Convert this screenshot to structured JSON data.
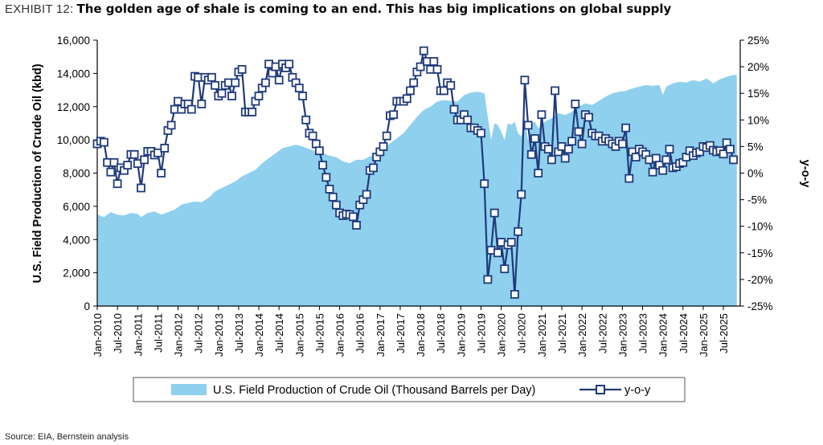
{
  "header": {
    "exhibit_label": "EXHIBIT 12:",
    "headline": "The golden age of shale is coming to an end. This has big implications on global supply"
  },
  "footer": {
    "source": "Source: EIA, Bernstein analysis"
  },
  "colors": {
    "area": "#8fd0ee",
    "line": "#1f3a7a",
    "marker_fill": "#ffffff"
  },
  "chart_data": {
    "type": "area+line",
    "ylabel_left": "U.S. Field Production of Crude Oil (kbd)",
    "ylabel_right": "y-o-y",
    "yticks_left": [
      "0",
      "2,000",
      "4,000",
      "6,000",
      "8,000",
      "10,000",
      "12,000",
      "14,000",
      "16,000"
    ],
    "yticks_right": [
      "-25%",
      "-20%",
      "-15%",
      "-10%",
      "-5%",
      "0%",
      "5%",
      "10%",
      "15%",
      "20%",
      "25%"
    ],
    "ylim_left": [
      0,
      16000
    ],
    "ylim_right": [
      -25,
      25
    ],
    "xlim_months": [
      0,
      191
    ],
    "xtick_labels": [
      "Jan-2010",
      "Jul-2010",
      "Jan-2011",
      "Jul-2011",
      "Jan-2012",
      "Jul-2012",
      "Jan-2013",
      "Jul-2013",
      "Jan-2014",
      "Jul-2014",
      "Jan-2015",
      "Jul-2015",
      "Jan-2016",
      "Jul-2016",
      "Jan-2017",
      "Jul-2017",
      "Jan-2018",
      "Jul-2018",
      "Jan-2019",
      "Jul-2019",
      "Jan-2020",
      "Jul-2020",
      "Jan-2021",
      "Jul-2021",
      "Jan-2022",
      "Jul-2022",
      "Jan-2023",
      "Jul-2023",
      "Jan-2024",
      "Jul-2024",
      "Jan-2025",
      "Jul-2025"
    ],
    "legend": {
      "position": "bottom",
      "area_label": "U.S. Field Production of Crude Oil (Thousand Barrels per Day)",
      "line_label": "y-o-y"
    },
    "series": [
      {
        "name": "U.S. Field Production of Crude Oil (Thousand Barrels per Day)",
        "kind": "area",
        "axis": "left",
        "points": [
          [
            0,
            5500
          ],
          [
            2,
            5350
          ],
          [
            4,
            5650
          ],
          [
            6,
            5500
          ],
          [
            8,
            5450
          ],
          [
            10,
            5600
          ],
          [
            12,
            5550
          ],
          [
            13,
            5350
          ],
          [
            15,
            5600
          ],
          [
            17,
            5700
          ],
          [
            19,
            5500
          ],
          [
            21,
            5650
          ],
          [
            23,
            5800
          ],
          [
            25,
            6100
          ],
          [
            27,
            6200
          ],
          [
            29,
            6300
          ],
          [
            31,
            6250
          ],
          [
            33,
            6500
          ],
          [
            35,
            6900
          ],
          [
            37,
            7100
          ],
          [
            39,
            7300
          ],
          [
            41,
            7500
          ],
          [
            43,
            7800
          ],
          [
            45,
            8000
          ],
          [
            47,
            8200
          ],
          [
            49,
            8600
          ],
          [
            51,
            8900
          ],
          [
            53,
            9200
          ],
          [
            55,
            9500
          ],
          [
            57,
            9600
          ],
          [
            59,
            9700
          ],
          [
            61,
            9600
          ],
          [
            63,
            9450
          ],
          [
            65,
            9300
          ],
          [
            67,
            9200
          ],
          [
            69,
            9050
          ],
          [
            71,
            8950
          ],
          [
            73,
            8700
          ],
          [
            75,
            8600
          ],
          [
            77,
            8800
          ],
          [
            79,
            8800
          ],
          [
            81,
            9000
          ],
          [
            83,
            9200
          ],
          [
            85,
            9400
          ],
          [
            87,
            9800
          ],
          [
            89,
            10100
          ],
          [
            91,
            10400
          ],
          [
            93,
            10900
          ],
          [
            95,
            11400
          ],
          [
            97,
            11800
          ],
          [
            99,
            12000
          ],
          [
            101,
            12300
          ],
          [
            103,
            12400
          ],
          [
            105,
            12350
          ],
          [
            107,
            12300
          ],
          [
            109,
            12700
          ],
          [
            111,
            12850
          ],
          [
            113,
            12900
          ],
          [
            115,
            12800
          ],
          [
            117,
            10000
          ],
          [
            118,
            11000
          ],
          [
            119,
            10900
          ],
          [
            120,
            10500
          ],
          [
            121,
            10000
          ],
          [
            122,
            11000
          ],
          [
            123,
            10900
          ],
          [
            124,
            11100
          ],
          [
            125,
            10400
          ],
          [
            126,
            10200
          ],
          [
            127,
            11200
          ],
          [
            128,
            9950
          ],
          [
            129,
            11000
          ],
          [
            130,
            11100
          ],
          [
            131,
            10700
          ],
          [
            133,
            11100
          ],
          [
            135,
            11300
          ],
          [
            137,
            11600
          ],
          [
            139,
            11500
          ],
          [
            141,
            11700
          ],
          [
            143,
            12000
          ],
          [
            145,
            12200
          ],
          [
            147,
            12100
          ],
          [
            149,
            12350
          ],
          [
            151,
            12600
          ],
          [
            153,
            12800
          ],
          [
            155,
            12900
          ],
          [
            157,
            12950
          ],
          [
            159,
            13100
          ],
          [
            161,
            13200
          ],
          [
            163,
            13300
          ],
          [
            165,
            13250
          ],
          [
            167,
            13300
          ],
          [
            168,
            12700
          ],
          [
            169,
            13200
          ],
          [
            171,
            13400
          ],
          [
            173,
            13500
          ],
          [
            175,
            13450
          ],
          [
            177,
            13600
          ],
          [
            179,
            13500
          ],
          [
            181,
            13700
          ],
          [
            183,
            13400
          ],
          [
            185,
            13650
          ],
          [
            187,
            13800
          ],
          [
            189,
            13900
          ],
          [
            190,
            13900
          ]
        ]
      },
      {
        "name": "y-o-y",
        "kind": "line-markers",
        "axis": "right",
        "unit": "%",
        "points": [
          [
            0,
            5.5
          ],
          [
            1,
            6
          ],
          [
            2,
            5.8
          ],
          [
            3,
            2
          ],
          [
            4,
            0.2
          ],
          [
            5,
            2
          ],
          [
            6,
            -2
          ],
          [
            7,
            1
          ],
          [
            8,
            0.5
          ],
          [
            9,
            1.5
          ],
          [
            10,
            3.5
          ],
          [
            11,
            3.5
          ],
          [
            12,
            1.8
          ],
          [
            13,
            -2.8
          ],
          [
            14,
            2.5
          ],
          [
            15,
            4.1
          ],
          [
            16,
            4.1
          ],
          [
            17,
            3.4
          ],
          [
            18,
            3.8
          ],
          [
            19,
            0
          ],
          [
            20,
            4.7
          ],
          [
            21,
            8
          ],
          [
            22,
            9
          ],
          [
            23,
            12
          ],
          [
            24,
            13.5
          ],
          [
            25,
            12
          ],
          [
            26,
            13
          ],
          [
            27,
            13
          ],
          [
            28,
            12
          ],
          [
            29,
            18.2
          ],
          [
            30,
            18
          ],
          [
            31,
            13
          ],
          [
            32,
            18
          ],
          [
            33,
            17.5
          ],
          [
            34,
            18
          ],
          [
            35,
            16.5
          ],
          [
            36,
            14.5
          ],
          [
            37,
            15
          ],
          [
            38,
            16.5
          ],
          [
            39,
            17
          ],
          [
            40,
            14.5
          ],
          [
            41,
            17
          ],
          [
            42,
            19
          ],
          [
            43,
            19.5
          ],
          [
            44,
            11.5
          ],
          [
            45,
            11.5
          ],
          [
            46,
            11.5
          ],
          [
            47,
            13.5
          ],
          [
            48,
            14.5
          ],
          [
            49,
            16
          ],
          [
            50,
            17
          ],
          [
            51,
            20.5
          ],
          [
            52,
            18.8
          ],
          [
            53,
            20
          ],
          [
            54,
            17.5
          ],
          [
            55,
            20.5
          ],
          [
            56,
            19.8
          ],
          [
            57,
            20.5
          ],
          [
            58,
            18
          ],
          [
            59,
            17
          ],
          [
            60,
            16
          ],
          [
            61,
            14.5
          ],
          [
            62,
            10
          ],
          [
            63,
            7.5
          ],
          [
            64,
            7
          ],
          [
            65,
            5.5
          ],
          [
            66,
            4.2
          ],
          [
            67,
            1.5
          ],
          [
            68,
            -0.8
          ],
          [
            69,
            -3
          ],
          [
            70,
            -4.5
          ],
          [
            71,
            -6
          ],
          [
            72,
            -7.5
          ],
          [
            73,
            -8
          ],
          [
            74,
            -7.7
          ],
          [
            75,
            -7.8
          ],
          [
            76,
            -8.2
          ],
          [
            77,
            -9.8
          ],
          [
            78,
            -6
          ],
          [
            79,
            -5
          ],
          [
            80,
            -4
          ],
          [
            81,
            0.5
          ],
          [
            82,
            1
          ],
          [
            83,
            3
          ],
          [
            84,
            4
          ],
          [
            85,
            5
          ],
          [
            86,
            7
          ],
          [
            87,
            10.8
          ],
          [
            88,
            11
          ],
          [
            89,
            13.5
          ],
          [
            90,
            13.5
          ],
          [
            91,
            13.5
          ],
          [
            92,
            14
          ],
          [
            93,
            15.5
          ],
          [
            94,
            17
          ],
          [
            95,
            19
          ],
          [
            96,
            20
          ],
          [
            97,
            23
          ],
          [
            98,
            21
          ],
          [
            99,
            19.5
          ],
          [
            100,
            21
          ],
          [
            101,
            19.5
          ],
          [
            102,
            15.5
          ],
          [
            103,
            15.5
          ],
          [
            104,
            17
          ],
          [
            105,
            16.5
          ],
          [
            106,
            12
          ],
          [
            107,
            10
          ],
          [
            108,
            10
          ],
          [
            109,
            11
          ],
          [
            110,
            10
          ],
          [
            111,
            8.5
          ],
          [
            112,
            8.5
          ],
          [
            113,
            8
          ],
          [
            114,
            7.5
          ],
          [
            115,
            -2
          ],
          [
            116,
            -20
          ],
          [
            117,
            -14.5
          ],
          [
            118,
            -7.5
          ],
          [
            119,
            -15
          ],
          [
            120,
            -13
          ],
          [
            121,
            -18
          ],
          [
            122,
            -13.5
          ],
          [
            123,
            -13
          ],
          [
            124,
            -22.8
          ],
          [
            125,
            -11
          ],
          [
            126,
            -4
          ],
          [
            127,
            17.5
          ],
          [
            128,
            9
          ],
          [
            129,
            3.5
          ],
          [
            130,
            6.5
          ],
          [
            131,
            0
          ],
          [
            132,
            11
          ],
          [
            133,
            5
          ],
          [
            134,
            4.5
          ],
          [
            135,
            2.5
          ],
          [
            136,
            15.5
          ],
          [
            137,
            4
          ],
          [
            138,
            5
          ],
          [
            139,
            2.8
          ],
          [
            140,
            4.5
          ],
          [
            141,
            6
          ],
          [
            142,
            13
          ],
          [
            143,
            7.8
          ],
          [
            144,
            5.5
          ],
          [
            145,
            11
          ],
          [
            146,
            10.5
          ],
          [
            147,
            7.5
          ],
          [
            148,
            7
          ],
          [
            149,
            7
          ],
          [
            150,
            6
          ],
          [
            151,
            6.5
          ],
          [
            152,
            6
          ],
          [
            153,
            5.5
          ],
          [
            154,
            5
          ],
          [
            155,
            6
          ],
          [
            156,
            5.5
          ],
          [
            157,
            8.5
          ],
          [
            158,
            -1
          ],
          [
            159,
            4
          ],
          [
            160,
            3
          ],
          [
            161,
            4.5
          ],
          [
            162,
            4
          ],
          [
            163,
            3.5
          ],
          [
            164,
            2.5
          ],
          [
            165,
            0.2
          ],
          [
            166,
            2.8
          ],
          [
            167,
            1.5
          ],
          [
            168,
            0.5
          ],
          [
            169,
            2.5
          ],
          [
            170,
            4.5
          ],
          [
            171,
            1
          ],
          [
            172,
            1.2
          ],
          [
            173,
            1.8
          ],
          [
            174,
            2
          ],
          [
            175,
            3
          ],
          [
            176,
            4.2
          ],
          [
            177,
            3.3
          ],
          [
            178,
            3.8
          ],
          [
            179,
            4
          ],
          [
            180,
            5
          ],
          [
            181,
            4.8
          ],
          [
            182,
            5.2
          ],
          [
            183,
            4.3
          ],
          [
            184,
            4
          ],
          [
            185,
            4.2
          ],
          [
            186,
            3.6
          ],
          [
            187,
            5.7
          ],
          [
            188,
            4.5
          ],
          [
            189,
            2.5
          ]
        ]
      }
    ]
  }
}
